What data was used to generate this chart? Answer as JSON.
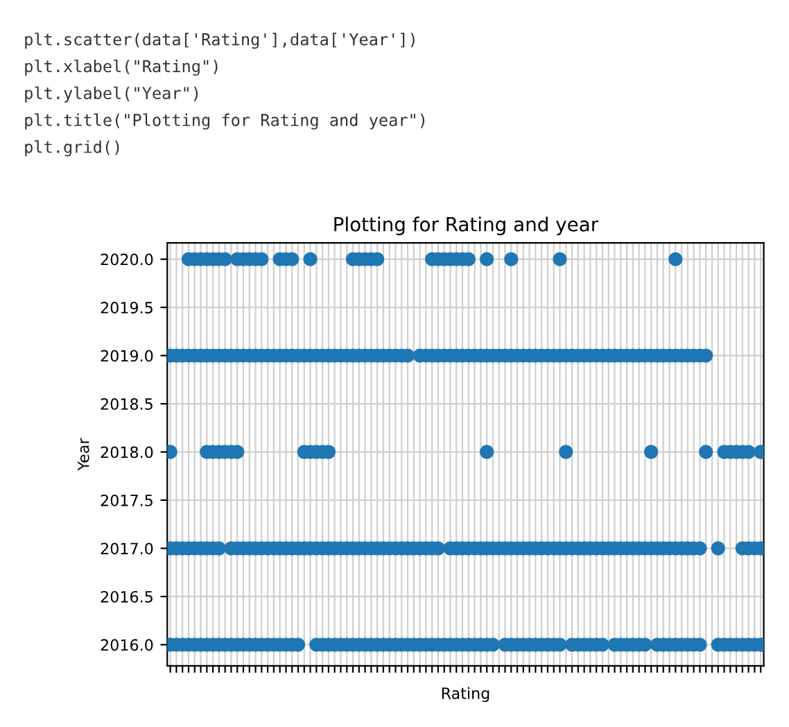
{
  "chart_data": {
    "type": "scatter",
    "title": "Plotting for Rating and year",
    "xlabel": "Rating",
    "ylabel": "Year",
    "annotations": [
      "plt.scatter(data['Rating'],data['Year'])",
      "plt.xlabel(\"Rating\")",
      "plt.ylabel(\"Year\")",
      "plt.title(\"Plotting for Rating and year\")",
      "plt.grid()"
    ],
    "categories": [
      null,
      null,
      null,
      null,
      null,
      null,
      null,
      null,
      null,
      null,
      null,
      null,
      null,
      null,
      null,
      null,
      null,
      null,
      null,
      null,
      null,
      null,
      null,
      null,
      null,
      null,
      null,
      null,
      null,
      null,
      null,
      null,
      null,
      null,
      null,
      null,
      null,
      null,
      null,
      null,
      null,
      null,
      null,
      null,
      null,
      null,
      null,
      null,
      null,
      null,
      null,
      null,
      null,
      null,
      null,
      null,
      null,
      null,
      null,
      null,
      null,
      null,
      null,
      null,
      null,
      null,
      null,
      null,
      null,
      null,
      null,
      null,
      null,
      null,
      null,
      null,
      null,
      null,
      null,
      null,
      null,
      null,
      null,
      null,
      null,
      null,
      null,
      null,
      null,
      null,
      null,
      null,
      null,
      null,
      null,
      null,
      null,
      null
    ],
    "series": [
      {
        "color": "#1f77b4",
        "values": [
          null,
          null,
          null,
          2020,
          2020,
          2020,
          2020,
          2020,
          2020,
          2020,
          null,
          2020,
          2020,
          2020,
          2020,
          2020,
          null,
          null,
          2020,
          2020,
          2020,
          null,
          null,
          2020,
          null,
          null,
          null,
          null,
          null,
          null,
          2020,
          2020,
          2020,
          2020,
          2020,
          null,
          null,
          null,
          null,
          null,
          null,
          null,
          null,
          2020,
          2020,
          2020,
          2020,
          2020,
          2020,
          2020,
          null,
          null,
          2020,
          null,
          null,
          null,
          2020,
          null,
          null,
          null,
          null,
          null,
          null,
          null,
          2020,
          null,
          null,
          null,
          null,
          null,
          null,
          null,
          null,
          null,
          null,
          null,
          null,
          null,
          null,
          null,
          null,
          null,
          null,
          2020,
          null,
          null,
          null,
          null,
          null,
          null,
          null,
          null,
          null,
          null,
          null,
          null,
          null,
          null
        ]
      },
      {
        "color": "#1f77b4",
        "values": [
          2019,
          2019,
          2019,
          2019,
          2019,
          2019,
          2019,
          2019,
          2019,
          2019,
          2019,
          2019,
          2019,
          2019,
          2019,
          2019,
          2019,
          2019,
          2019,
          2019,
          2019,
          2019,
          2019,
          2019,
          2019,
          2019,
          2019,
          2019,
          2019,
          2019,
          2019,
          2019,
          2019,
          2019,
          2019,
          2019,
          2019,
          2019,
          2019,
          2019,
          null,
          2019,
          2019,
          2019,
          2019,
          2019,
          2019,
          2019,
          2019,
          2019,
          2019,
          2019,
          2019,
          2019,
          2019,
          2019,
          2019,
          2019,
          2019,
          2019,
          2019,
          2019,
          2019,
          2019,
          2019,
          2019,
          2019,
          2019,
          2019,
          2019,
          2019,
          2019,
          2019,
          2019,
          2019,
          2019,
          2019,
          2019,
          2019,
          2019,
          2019,
          2019,
          2019,
          2019,
          2019,
          2019,
          2019,
          2019,
          2019,
          null,
          null,
          null,
          null,
          null,
          null,
          null,
          null,
          null
        ]
      },
      {
        "color": "#1f77b4",
        "values": [
          2018,
          null,
          null,
          null,
          null,
          null,
          2018,
          2018,
          2018,
          2018,
          2018,
          2018,
          null,
          null,
          null,
          null,
          null,
          null,
          null,
          null,
          null,
          null,
          2018,
          2018,
          2018,
          2018,
          2018,
          null,
          null,
          null,
          null,
          null,
          null,
          null,
          null,
          null,
          null,
          null,
          null,
          null,
          null,
          null,
          null,
          null,
          null,
          null,
          null,
          null,
          null,
          null,
          null,
          null,
          2018,
          null,
          null,
          null,
          null,
          null,
          null,
          null,
          null,
          null,
          null,
          null,
          null,
          2018,
          null,
          null,
          null,
          null,
          null,
          null,
          null,
          null,
          null,
          null,
          null,
          null,
          null,
          2018,
          null,
          null,
          null,
          null,
          null,
          null,
          null,
          null,
          2018,
          null,
          null,
          2018,
          2018,
          2018,
          2018,
          2018,
          null,
          2018
        ]
      },
      {
        "color": "#1f77b4",
        "values": [
          2017,
          2017,
          2017,
          2017,
          2017,
          2017,
          2017,
          2017,
          2017,
          null,
          2017,
          2017,
          2017,
          2017,
          2017,
          2017,
          2017,
          2017,
          2017,
          2017,
          2017,
          2017,
          2017,
          2017,
          2017,
          2017,
          2017,
          2017,
          2017,
          2017,
          2017,
          2017,
          2017,
          2017,
          2017,
          2017,
          2017,
          2017,
          2017,
          2017,
          2017,
          2017,
          2017,
          2017,
          2017,
          null,
          2017,
          2017,
          2017,
          2017,
          2017,
          2017,
          2017,
          2017,
          2017,
          2017,
          2017,
          2017,
          2017,
          2017,
          2017,
          2017,
          2017,
          2017,
          2017,
          2017,
          2017,
          2017,
          2017,
          2017,
          2017,
          2017,
          2017,
          2017,
          2017,
          2017,
          2017,
          2017,
          2017,
          2017,
          2017,
          2017,
          2017,
          2017,
          2017,
          2017,
          2017,
          2017,
          null,
          null,
          2017,
          null,
          null,
          null,
          2017,
          2017,
          2017,
          2017
        ]
      },
      {
        "color": "#1f77b4",
        "values": [
          2016,
          2016,
          2016,
          2016,
          2016,
          2016,
          2016,
          2016,
          2016,
          2016,
          2016,
          2016,
          2016,
          2016,
          2016,
          2016,
          2016,
          2016,
          2016,
          2016,
          2016,
          2016,
          null,
          null,
          2016,
          2016,
          2016,
          2016,
          2016,
          2016,
          2016,
          2016,
          2016,
          2016,
          2016,
          2016,
          2016,
          2016,
          2016,
          2016,
          2016,
          2016,
          2016,
          2016,
          2016,
          2016,
          2016,
          2016,
          2016,
          2016,
          2016,
          2016,
          2016,
          2016,
          null,
          2016,
          2016,
          2016,
          2016,
          2016,
          2016,
          2016,
          2016,
          2016,
          2016,
          null,
          2016,
          2016,
          2016,
          2016,
          2016,
          2016,
          null,
          2016,
          2016,
          2016,
          2016,
          2016,
          2016,
          null,
          2016,
          2016,
          2016,
          2016,
          2016,
          2016,
          2016,
          2016,
          null,
          null,
          2016,
          2016,
          2016,
          2016,
          2016,
          2016,
          2016,
          2016
        ]
      }
    ],
    "ylim": [
      2015.78,
      2020.17
    ],
    "yticks": [
      {
        "value": 2016,
        "label": "2016.0"
      },
      {
        "value": 2016.5,
        "label": "2016.5"
      },
      {
        "value": 2017,
        "label": "2017.0"
      },
      {
        "value": 2017.5,
        "label": "2017.5"
      },
      {
        "value": 2018,
        "label": "2018.0"
      },
      {
        "value": 2018.5,
        "label": "2018.5"
      },
      {
        "value": 2019,
        "label": "2019.0"
      },
      {
        "value": 2019.5,
        "label": "2019.5"
      },
      {
        "value": 2020,
        "label": "2020.0"
      }
    ],
    "grid": true,
    "marker": "circle"
  }
}
